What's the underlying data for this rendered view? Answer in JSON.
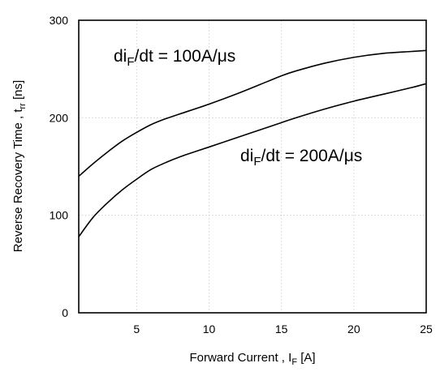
{
  "chart_data": {
    "type": "line",
    "xlabel": "Forward Current , I",
    "xlabel_sub": "F",
    "xlabel_unit": " [A]",
    "ylabel": "Reverse Recovery Time , t",
    "ylabel_sub": "rr",
    "ylabel_unit": " [ns]",
    "xlim": [
      1,
      25
    ],
    "ylim": [
      0,
      300
    ],
    "xticks": [
      5,
      10,
      15,
      20,
      25
    ],
    "yticks": [
      0,
      100,
      200,
      300
    ],
    "grid": true,
    "series": [
      {
        "name": "diF/dt = 100A/μs",
        "x": [
          1,
          2,
          3,
          4,
          5,
          6,
          7,
          8,
          10,
          12,
          14,
          15,
          16,
          18,
          20,
          22,
          24,
          25
        ],
        "y": [
          140,
          153,
          165,
          176,
          185,
          193,
          199,
          204,
          214,
          225,
          237,
          243,
          248,
          256,
          262,
          266,
          268,
          269
        ]
      },
      {
        "name": "diF/dt = 200A/μs",
        "x": [
          1,
          2,
          3,
          4,
          5,
          6,
          7,
          8,
          10,
          12,
          14,
          15,
          16,
          18,
          20,
          22,
          24,
          25
        ],
        "y": [
          78,
          98,
          113,
          126,
          137,
          147,
          154,
          160,
          170,
          180,
          190,
          195,
          200,
          209,
          217,
          224,
          231,
          235
        ]
      }
    ],
    "annotations": [
      {
        "text": "di",
        "sub": "F",
        "rest": "/dt = 100A/μs"
      },
      {
        "text": "di",
        "sub": "F",
        "rest": "/dt = 200A/μs"
      }
    ]
  }
}
